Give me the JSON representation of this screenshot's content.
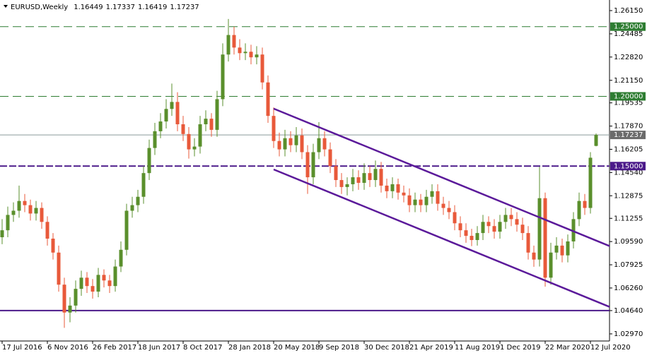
{
  "chart_data": {
    "type": "candlestick",
    "title": "EURUSD,Weekly",
    "categories": [
      "17 Jul 2016",
      null,
      null,
      null,
      null,
      null,
      null,
      null,
      "6 Nov 2016",
      null,
      null,
      null,
      null,
      null,
      null,
      null,
      "26 Feb 2017",
      null,
      null,
      null,
      null,
      null,
      null,
      null,
      "18 Jun 2017",
      null,
      null,
      null,
      null,
      null,
      null,
      null,
      "8 Oct 2017",
      null,
      null,
      null,
      null,
      null,
      null,
      null,
      "28 Jan 2018",
      null,
      null,
      null,
      null,
      null,
      null,
      null,
      "20 May 2018",
      null,
      null,
      null,
      null,
      null,
      null,
      null,
      "9 Sep 2018",
      null,
      null,
      null,
      null,
      null,
      null,
      null,
      "30 Dec 2018",
      null,
      null,
      null,
      null,
      null,
      null,
      null,
      "21 Apr 2019",
      null,
      null,
      null,
      null,
      null,
      null,
      null,
      "11 Aug 2019",
      null,
      null,
      null,
      null,
      null,
      null,
      null,
      "1 Dec 2019",
      null,
      null,
      null,
      null,
      null,
      null,
      null,
      "22 Mar 2020",
      null,
      null,
      null,
      null,
      null,
      null,
      null,
      "12 Jul 2020",
      null
    ],
    "open": [
      1.099,
      1.104,
      1.115,
      1.118,
      1.125,
      1.122,
      1.116,
      1.12,
      1.11,
      1.098,
      1.088,
      1.065,
      1.045,
      1.05,
      1.062,
      1.07,
      1.064,
      1.06,
      1.072,
      1.068,
      1.064,
      1.078,
      1.09,
      1.118,
      1.122,
      1.128,
      1.145,
      1.163,
      1.175,
      1.182,
      1.191,
      1.196,
      1.18,
      1.173,
      1.162,
      1.164,
      1.18,
      1.184,
      1.176,
      1.198,
      1.23,
      1.244,
      1.235,
      1.231,
      1.232,
      1.228,
      1.23,
      1.21,
      1.186,
      1.168,
      1.162,
      1.17,
      1.165,
      1.172,
      1.16,
      1.142,
      1.16,
      1.17,
      1.162,
      1.15,
      1.14,
      1.135,
      1.137,
      1.142,
      1.138,
      1.145,
      1.14,
      1.148,
      1.136,
      1.132,
      1.137,
      1.131,
      1.129,
      1.122,
      1.126,
      1.122,
      1.128,
      1.132,
      1.123,
      1.12,
      1.117,
      1.109,
      1.104,
      1.1,
      1.097,
      1.102,
      1.11,
      1.107,
      1.103,
      1.11,
      1.115,
      1.112,
      1.108,
      1.102,
      1.088,
      1.083,
      1.127,
      1.07,
      1.088,
      1.093,
      1.086,
      1.096,
      1.112,
      1.125,
      1.12,
      1.16449
    ],
    "high": [
      1.112,
      1.121,
      1.124,
      1.136,
      1.13,
      1.126,
      1.125,
      1.124,
      1.114,
      1.102,
      1.093,
      1.07,
      1.056,
      1.068,
      1.075,
      1.074,
      1.069,
      1.077,
      1.076,
      1.072,
      1.083,
      1.096,
      1.123,
      1.128,
      1.133,
      1.15,
      1.169,
      1.181,
      1.188,
      1.198,
      1.2092,
      1.203,
      1.186,
      1.178,
      1.17,
      1.186,
      1.19,
      1.188,
      1.204,
      1.238,
      1.2555,
      1.25,
      1.241,
      1.238,
      1.237,
      1.236,
      1.235,
      1.215,
      1.192,
      1.174,
      1.176,
      1.175,
      1.178,
      1.177,
      1.165,
      1.166,
      1.1815,
      1.175,
      1.167,
      1.155,
      1.145,
      1.142,
      1.148,
      1.147,
      1.152,
      1.15,
      1.154,
      1.153,
      1.141,
      1.142,
      1.141,
      1.136,
      1.134,
      1.131,
      1.13,
      1.133,
      1.137,
      1.137,
      1.128,
      1.125,
      1.122,
      1.114,
      1.109,
      1.105,
      1.107,
      1.115,
      1.114,
      1.112,
      1.115,
      1.12,
      1.12,
      1.117,
      1.113,
      1.107,
      1.093,
      1.1495,
      1.131,
      1.095,
      1.099,
      1.098,
      1.101,
      1.117,
      1.131,
      1.13,
      1.16,
      1.17337
    ],
    "low": [
      1.094,
      1.099,
      1.11,
      1.113,
      1.117,
      1.111,
      1.111,
      1.105,
      1.093,
      1.083,
      1.06,
      1.034,
      1.038,
      1.045,
      1.057,
      1.059,
      1.055,
      1.056,
      1.063,
      1.059,
      1.06,
      1.074,
      1.086,
      1.113,
      1.117,
      1.123,
      1.14,
      1.158,
      1.17,
      1.177,
      1.186,
      1.175,
      1.168,
      1.1554,
      1.157,
      1.159,
      1.175,
      1.171,
      1.171,
      1.193,
      1.225,
      1.23,
      1.226,
      1.226,
      1.223,
      1.223,
      1.205,
      1.181,
      1.163,
      1.157,
      1.157,
      1.16,
      1.16,
      1.155,
      1.1301,
      1.137,
      1.155,
      1.157,
      1.145,
      1.135,
      1.13,
      1.129,
      1.132,
      1.133,
      1.133,
      1.135,
      1.135,
      1.131,
      1.127,
      1.127,
      1.126,
      1.124,
      1.117,
      1.117,
      1.117,
      1.117,
      1.123,
      1.118,
      1.115,
      1.112,
      1.104,
      1.099,
      1.095,
      1.0926,
      1.093,
      1.097,
      1.102,
      1.098,
      1.098,
      1.105,
      1.107,
      1.103,
      1.097,
      1.083,
      1.0778,
      1.078,
      1.0636,
      1.065,
      1.083,
      1.081,
      1.081,
      1.091,
      1.107,
      1.115,
      1.116,
      1.16419
    ],
    "close": [
      1.104,
      1.115,
      1.118,
      1.125,
      1.122,
      1.116,
      1.12,
      1.11,
      1.098,
      1.088,
      1.065,
      1.045,
      1.05,
      1.062,
      1.07,
      1.064,
      1.06,
      1.072,
      1.068,
      1.064,
      1.078,
      1.09,
      1.118,
      1.122,
      1.128,
      1.145,
      1.163,
      1.175,
      1.182,
      1.191,
      1.196,
      1.18,
      1.173,
      1.162,
      1.164,
      1.18,
      1.184,
      1.176,
      1.198,
      1.23,
      1.244,
      1.235,
      1.231,
      1.232,
      1.228,
      1.23,
      1.21,
      1.186,
      1.168,
      1.162,
      1.17,
      1.165,
      1.172,
      1.16,
      1.142,
      1.16,
      1.17,
      1.162,
      1.15,
      1.14,
      1.135,
      1.137,
      1.142,
      1.138,
      1.145,
      1.14,
      1.148,
      1.136,
      1.132,
      1.137,
      1.131,
      1.129,
      1.122,
      1.126,
      1.122,
      1.128,
      1.132,
      1.123,
      1.12,
      1.117,
      1.109,
      1.104,
      1.1,
      1.097,
      1.102,
      1.11,
      1.107,
      1.103,
      1.11,
      1.115,
      1.112,
      1.108,
      1.102,
      1.088,
      1.083,
      1.127,
      1.07,
      1.088,
      1.093,
      1.086,
      1.096,
      1.112,
      1.125,
      1.12,
      1.156,
      1.17237
    ],
    "up_color": "#5a8f2c",
    "down_color": "#e8593a",
    "ylim": [
      1.0246,
      1.2691
    ],
    "yticks": [
      {
        "value": 1.2615,
        "label": "1.26150"
      },
      {
        "value": 1.24485,
        "label": "1.24485"
      },
      {
        "value": 1.2282,
        "label": "1.22820"
      },
      {
        "value": 1.2115,
        "label": "1.21150"
      },
      {
        "value": 1.19535,
        "label": "1.19535"
      },
      {
        "value": 1.1787,
        "label": "1.17870"
      },
      {
        "value": 1.16205,
        "label": "1.16205"
      },
      {
        "value": 1.1454,
        "label": "1.14540"
      },
      {
        "value": 1.12875,
        "label": "1.12875"
      },
      {
        "value": 1.11255,
        "label": "1.11255"
      },
      {
        "value": 1.0959,
        "label": "1.09590"
      },
      {
        "value": 1.07925,
        "label": "1.07925"
      },
      {
        "value": 1.0626,
        "label": "1.06260"
      },
      {
        "value": 1.0464,
        "label": "1.04640"
      },
      {
        "value": 1.0297,
        "label": "1.02970"
      }
    ],
    "levels": [
      {
        "value": 1.25,
        "label": "1.25000",
        "color": "#2e7d32",
        "style": "dashed"
      },
      {
        "value": 1.2,
        "label": "1.20000",
        "color": "#2e7d32",
        "style": "dashed"
      },
      {
        "value": 1.15,
        "label": "1.15000",
        "color": "#4b1a8a",
        "style": "dashed-thick"
      },
      {
        "value": 1.0464,
        "color": "#4b1a8a",
        "style": "solid-thick"
      }
    ],
    "trendlines": [
      {
        "x": [
          48,
          108.4
        ],
        "y": [
          1.1912,
          1.091
        ],
        "color": "#5b1a9a"
      },
      {
        "x": [
          48,
          108.4
        ],
        "y": [
          1.1476,
          1.0474
        ],
        "color": "#5b1a9a"
      }
    ]
  }
}
